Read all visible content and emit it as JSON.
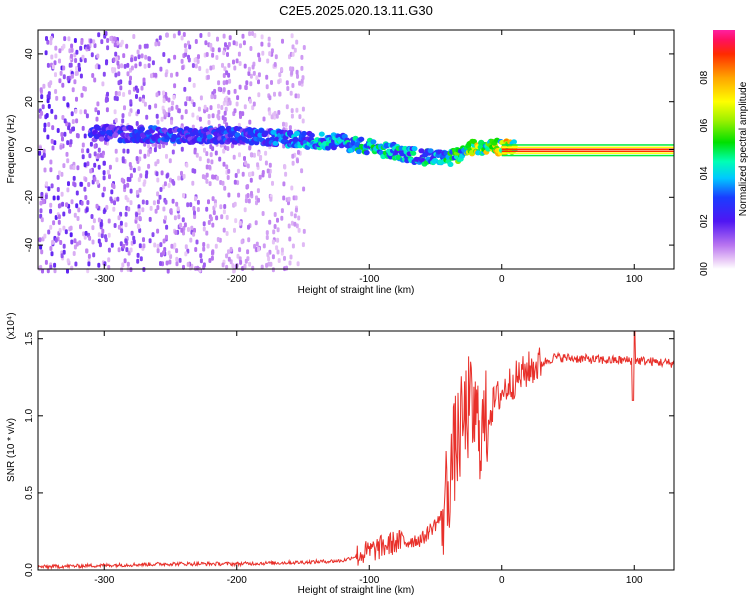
{
  "title": "C2E5.2025.020.13.11.G30",
  "colors": {
    "snr_line": "#e8302a",
    "axis": "#000000",
    "background": "#ffffff"
  },
  "chart_data": [
    {
      "type": "heatmap",
      "xlabel": "Height of straight line (km)",
      "ylabel": "Frequency (Hz)",
      "xlim": [
        -350,
        130
      ],
      "ylim": [
        -50,
        50
      ],
      "xticks": [
        "-300",
        "-200",
        "-100",
        "0",
        "100"
      ],
      "xtick_values": [
        -300,
        -200,
        -100,
        0,
        100
      ],
      "yticks": [
        "-40",
        "-20",
        "0",
        "20",
        "40"
      ],
      "ytick_values": [
        -40,
        -20,
        0,
        20,
        40
      ],
      "colorbar": {
        "label": "Normalized spectral amplitude",
        "range": [
          0,
          1
        ],
        "ticks": [
          "0.0",
          "0.2",
          "0.4",
          "0.6",
          "0.8"
        ],
        "tick_values": [
          0.0,
          0.2,
          0.4,
          0.6,
          0.8
        ],
        "colormap": "rainbow"
      },
      "ridge": {
        "description_points_x": [
          -310,
          -250,
          -200,
          -150,
          -120,
          -100,
          -80,
          -60,
          -40,
          -20,
          0,
          130
        ],
        "description_points_y": [
          7,
          6,
          6,
          4,
          3,
          1,
          -1,
          -3,
          -4,
          1,
          1,
          0
        ],
        "peak_amplitude": [
          0.3,
          0.35,
          0.35,
          0.45,
          0.5,
          0.55,
          0.5,
          0.5,
          0.55,
          0.8,
          0.85,
          0.85
        ]
      }
    },
    {
      "type": "line",
      "xlabel": "Height of straight line (km)",
      "ylabel": "SNR (10 * v/v)",
      "scale_label": "(x10⁴)",
      "xlim": [
        -350,
        130
      ],
      "ylim": [
        0,
        1.55
      ],
      "xticks": [
        "-300",
        "-200",
        "-100",
        "0",
        "100"
      ],
      "xtick_values": [
        -300,
        -200,
        -100,
        0,
        100
      ],
      "yticks": [
        "0.0",
        "0.5",
        "1.0",
        "1.5"
      ],
      "ytick_values": [
        0.0,
        0.5,
        1.0,
        1.5
      ],
      "series": [
        {
          "color": "#e8302a",
          "x": [
            -350,
            -300,
            -250,
            -200,
            -150,
            -120,
            -100,
            -80,
            -60,
            -45,
            -35,
            -25,
            -15,
            -5,
            5,
            20,
            40,
            60,
            80,
            100,
            130
          ],
          "y": [
            0.02,
            0.03,
            0.04,
            0.04,
            0.05,
            0.06,
            0.12,
            0.18,
            0.2,
            0.35,
            0.8,
            1.05,
            0.9,
            1.1,
            1.2,
            1.3,
            1.38,
            1.37,
            1.36,
            1.36,
            1.34
          ]
        }
      ]
    }
  ]
}
